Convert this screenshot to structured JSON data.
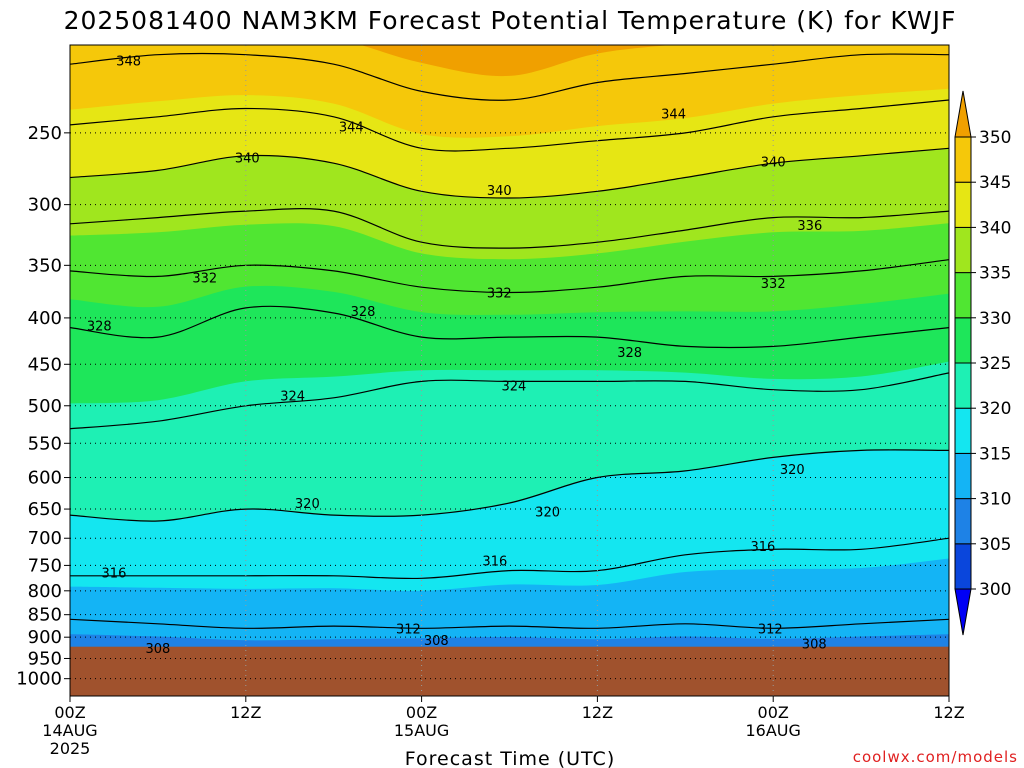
{
  "chart_data": {
    "type": "heatmap",
    "title": "2025081400 NAM3KM Forecast Potential Temperature (K) for KWJF",
    "xlabel": "Forecast Time (UTC)",
    "ylabel": "",
    "credit": "coolwx.com/models",
    "y_scale": "log",
    "ylim": [
      1045,
      200
    ],
    "xlim": [
      0,
      60
    ],
    "y_ticks": [
      250,
      300,
      350,
      400,
      450,
      500,
      550,
      600,
      650,
      700,
      750,
      800,
      850,
      900,
      950,
      1000
    ],
    "x_ticks": [
      {
        "x": 0,
        "label": "00Z",
        "date": "14AUG",
        "year": "2025"
      },
      {
        "x": 12,
        "label": "12Z",
        "date": "",
        "year": ""
      },
      {
        "x": 24,
        "label": "00Z",
        "date": "15AUG",
        "year": ""
      },
      {
        "x": 36,
        "label": "12Z",
        "date": "",
        "year": ""
      },
      {
        "x": 48,
        "label": "00Z",
        "date": "16AUG",
        "year": ""
      },
      {
        "x": 60,
        "label": "12Z",
        "date": "",
        "year": ""
      }
    ],
    "surface_pressure": 922,
    "colorbar": {
      "levels": [
        300,
        305,
        310,
        315,
        320,
        325,
        330,
        335,
        340,
        345,
        350
      ],
      "colors": [
        "#0000f5",
        "#0a46dc",
        "#1e82e6",
        "#14b4f5",
        "#14e6f0",
        "#1ef0b4",
        "#1ee65a",
        "#50e632",
        "#a0e61e",
        "#e6e614",
        "#f5c80a",
        "#f0a000"
      ]
    },
    "grid": true,
    "profiles": [
      {
        "x": 0,
        "points": [
          [
            308,
            928
          ],
          [
            312,
            860
          ],
          [
            316,
            770
          ],
          [
            320,
            660
          ],
          [
            324,
            530
          ],
          [
            328,
            410
          ],
          [
            332,
            355
          ],
          [
            336,
            315
          ],
          [
            340,
            280
          ],
          [
            344,
            245
          ],
          [
            348,
            210
          ]
        ]
      },
      {
        "x": 6,
        "points": [
          [
            308,
            928
          ],
          [
            312,
            870
          ],
          [
            316,
            770
          ],
          [
            320,
            670
          ],
          [
            324,
            520
          ],
          [
            328,
            420
          ],
          [
            332,
            360
          ],
          [
            336,
            310
          ],
          [
            340,
            275
          ],
          [
            344,
            240
          ],
          [
            348,
            205
          ]
        ]
      },
      {
        "x": 12,
        "points": [
          [
            308,
            935
          ],
          [
            312,
            880
          ],
          [
            316,
            770
          ],
          [
            320,
            650
          ],
          [
            324,
            500
          ],
          [
            328,
            390
          ],
          [
            332,
            350
          ],
          [
            336,
            305
          ],
          [
            340,
            265
          ],
          [
            344,
            235
          ],
          [
            348,
            205
          ]
        ]
      },
      {
        "x": 18,
        "points": [
          [
            308,
            935
          ],
          [
            312,
            875
          ],
          [
            316,
            770
          ],
          [
            320,
            660
          ],
          [
            324,
            490
          ],
          [
            328,
            395
          ],
          [
            332,
            355
          ],
          [
            336,
            305
          ],
          [
            340,
            270
          ],
          [
            344,
            240
          ],
          [
            348,
            210
          ]
        ]
      },
      {
        "x": 24,
        "points": [
          [
            308,
            925
          ],
          [
            312,
            880
          ],
          [
            316,
            775
          ],
          [
            320,
            660
          ],
          [
            324,
            470
          ],
          [
            328,
            420
          ],
          [
            332,
            370
          ],
          [
            336,
            330
          ],
          [
            340,
            290
          ],
          [
            344,
            260
          ],
          [
            348,
            225
          ]
        ]
      },
      {
        "x": 30,
        "points": [
          [
            308,
            925
          ],
          [
            312,
            875
          ],
          [
            316,
            760
          ],
          [
            320,
            640
          ],
          [
            324,
            470
          ],
          [
            328,
            420
          ],
          [
            332,
            375
          ],
          [
            336,
            335
          ],
          [
            340,
            295
          ],
          [
            344,
            260
          ],
          [
            348,
            230
          ]
        ]
      },
      {
        "x": 36,
        "points": [
          [
            308,
            930
          ],
          [
            312,
            880
          ],
          [
            316,
            760
          ],
          [
            320,
            600
          ],
          [
            324,
            470
          ],
          [
            328,
            420
          ],
          [
            332,
            370
          ],
          [
            336,
            330
          ],
          [
            340,
            290
          ],
          [
            344,
            255
          ],
          [
            348,
            220
          ]
        ]
      },
      {
        "x": 42,
        "points": [
          [
            308,
            928
          ],
          [
            312,
            870
          ],
          [
            316,
            730
          ],
          [
            320,
            590
          ],
          [
            324,
            470
          ],
          [
            328,
            430
          ],
          [
            332,
            360
          ],
          [
            336,
            320
          ],
          [
            340,
            280
          ],
          [
            344,
            250
          ],
          [
            348,
            215
          ]
        ]
      },
      {
        "x": 48,
        "points": [
          [
            308,
            928
          ],
          [
            312,
            880
          ],
          [
            316,
            720
          ],
          [
            320,
            570
          ],
          [
            324,
            480
          ],
          [
            328,
            430
          ],
          [
            332,
            360
          ],
          [
            336,
            310
          ],
          [
            340,
            270
          ],
          [
            344,
            240
          ],
          [
            348,
            210
          ]
        ]
      },
      {
        "x": 54,
        "points": [
          [
            308,
            928
          ],
          [
            312,
            870
          ],
          [
            316,
            720
          ],
          [
            320,
            560
          ],
          [
            324,
            480
          ],
          [
            328,
            420
          ],
          [
            332,
            355
          ],
          [
            336,
            310
          ],
          [
            340,
            265
          ],
          [
            344,
            235
          ],
          [
            348,
            205
          ]
        ]
      },
      {
        "x": 60,
        "points": [
          [
            308,
            928
          ],
          [
            312,
            860
          ],
          [
            316,
            700
          ],
          [
            320,
            560
          ],
          [
            324,
            460
          ],
          [
            328,
            410
          ],
          [
            332,
            345
          ],
          [
            336,
            305
          ],
          [
            340,
            260
          ],
          [
            344,
            230
          ],
          [
            348,
            205
          ]
        ]
      }
    ],
    "contour_labels": [
      {
        "value": "348",
        "x": 4.0,
        "p": 208
      },
      {
        "value": "344",
        "x": 19.2,
        "p": 246
      },
      {
        "value": "344",
        "x": 41.2,
        "p": 238
      },
      {
        "value": "340",
        "x": 12.1,
        "p": 266
      },
      {
        "value": "340",
        "x": 29.3,
        "p": 289
      },
      {
        "value": "340",
        "x": 48.0,
        "p": 269
      },
      {
        "value": "336",
        "x": 50.5,
        "p": 316
      },
      {
        "value": "332",
        "x": 9.2,
        "p": 361
      },
      {
        "value": "332",
        "x": 29.3,
        "p": 375
      },
      {
        "value": "332",
        "x": 48.0,
        "p": 366
      },
      {
        "value": "328",
        "x": 2.0,
        "p": 408
      },
      {
        "value": "328",
        "x": 20.0,
        "p": 393
      },
      {
        "value": "328",
        "x": 38.2,
        "p": 436
      },
      {
        "value": "324",
        "x": 15.2,
        "p": 487
      },
      {
        "value": "324",
        "x": 30.3,
        "p": 475
      },
      {
        "value": "320",
        "x": 16.2,
        "p": 640
      },
      {
        "value": "320",
        "x": 32.6,
        "p": 654
      },
      {
        "value": "320",
        "x": 49.3,
        "p": 587
      },
      {
        "value": "316",
        "x": 3.0,
        "p": 764
      },
      {
        "value": "316",
        "x": 29.0,
        "p": 741
      },
      {
        "value": "316",
        "x": 47.3,
        "p": 714
      },
      {
        "value": "312",
        "x": 23.1,
        "p": 880
      },
      {
        "value": "312",
        "x": 47.8,
        "p": 880
      },
      {
        "value": "308",
        "x": 6.0,
        "p": 925
      },
      {
        "value": "308",
        "x": 25.0,
        "p": 906
      },
      {
        "value": "308",
        "x": 50.8,
        "p": 914
      }
    ]
  }
}
